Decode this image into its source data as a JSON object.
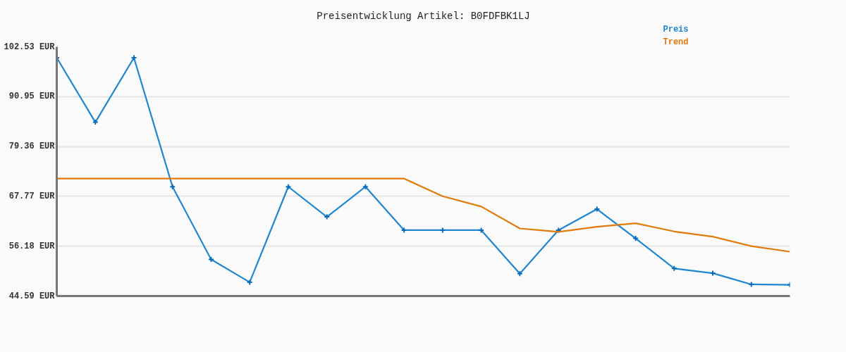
{
  "chart_data": {
    "type": "line",
    "title": "Preisentwicklung Artikel: B0FDFBK1LJ",
    "categories": [
      null,
      null,
      null,
      null,
      null,
      null,
      null,
      null,
      null,
      null,
      null,
      null,
      null,
      null,
      null,
      null,
      null,
      null,
      null,
      null
    ],
    "series": [
      {
        "name": "Preis",
        "color": "#1f86d0",
        "marker": "cross",
        "values": [
          100.0,
          85.0,
          100.0,
          70.0,
          53.1,
          47.8,
          70.0,
          63.0,
          70.0,
          59.9,
          59.9,
          59.9,
          49.8,
          59.9,
          64.8,
          58.0,
          51.0,
          49.9,
          47.3,
          47.2
        ]
      },
      {
        "name": "Trend",
        "color": "#e07b0c",
        "values": [
          71.9,
          71.9,
          71.9,
          71.9,
          71.9,
          71.9,
          71.9,
          71.9,
          71.9,
          71.9,
          67.8,
          65.4,
          60.3,
          59.5,
          60.7,
          61.5,
          59.6,
          58.4,
          56.2,
          54.9
        ]
      }
    ],
    "ylim": [
      44.59,
      102.53
    ],
    "yticks": [
      {
        "value": 44.59,
        "label": "44.59 EUR"
      },
      {
        "value": 56.18,
        "label": "56.18 EUR"
      },
      {
        "value": 67.77,
        "label": "67.77 EUR"
      },
      {
        "value": 79.36,
        "label": "79.36 EUR"
      },
      {
        "value": 90.95,
        "label": "90.95 EUR"
      },
      {
        "value": 102.53,
        "label": "102.53 EUR"
      }
    ],
    "grid": "y",
    "legend": "top right"
  }
}
